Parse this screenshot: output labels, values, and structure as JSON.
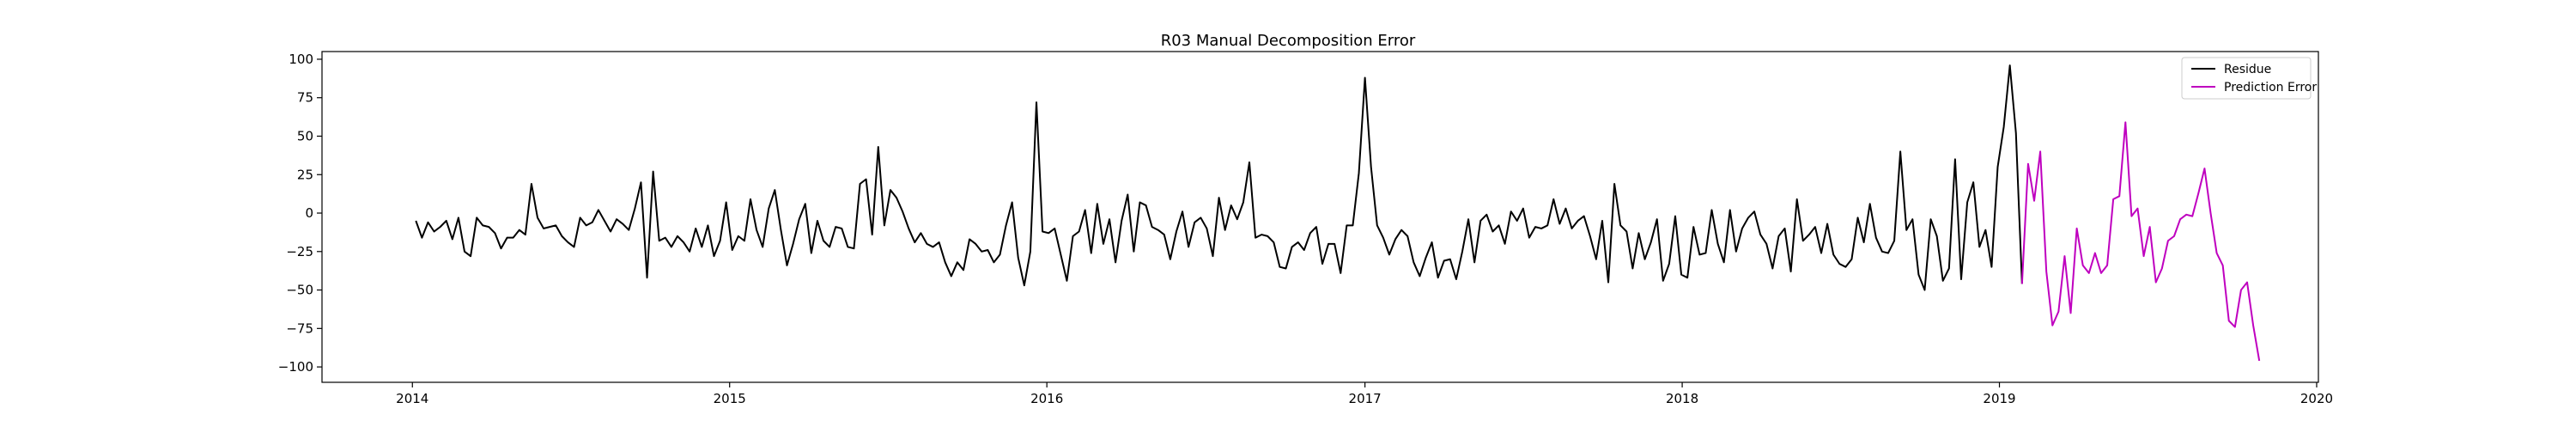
{
  "chart_data": {
    "type": "line",
    "title": "R03 Manual Decomposition Error",
    "xlabel": "",
    "ylabel": "",
    "xlim": [
      "2013-09-19",
      "2020-01-03"
    ],
    "ylim": [
      -110,
      105
    ],
    "x_ticks": [
      "2014",
      "2015",
      "2016",
      "2017",
      "2018",
      "2019",
      "2020"
    ],
    "y_ticks": [
      100,
      75,
      50,
      25,
      0,
      -25,
      -50,
      -75,
      -100
    ],
    "grid": false,
    "legend_position": "top-right",
    "series": [
      {
        "name": "Residue",
        "color": "#000000",
        "start_date": "2014-01-05",
        "step_days": 7,
        "values": [
          -5,
          -16,
          -6,
          -12,
          -9,
          -5,
          -17,
          -3,
          -25,
          -28,
          -3,
          -8,
          -9,
          -13,
          -23,
          -16,
          -16,
          -11,
          -14,
          19,
          -3,
          -10,
          -9,
          -8,
          -15,
          -19,
          -22,
          -3,
          -8,
          -6,
          2,
          -5,
          -12,
          -4,
          -7,
          -11,
          3,
          20,
          -42,
          27,
          -18,
          -16,
          -22,
          -15,
          -19,
          -25,
          -10,
          -22,
          -8,
          -28,
          -18,
          7,
          -24,
          -15,
          -18,
          9,
          -11,
          -22,
          3,
          15,
          -11,
          -34,
          -20,
          -4,
          6,
          -26,
          -5,
          -18,
          -22,
          -9,
          -10,
          -22,
          -23,
          19,
          22,
          -14,
          43,
          -8,
          15,
          10,
          1,
          -10,
          -19,
          -13,
          -20,
          -22,
          -19,
          -32,
          -41,
          -32,
          -37,
          -17,
          -20,
          -25,
          -24,
          -32,
          -27,
          -8,
          7,
          -29,
          -47,
          -25,
          72,
          -12,
          -13,
          -10,
          -27,
          -44,
          -15,
          -12,
          2,
          -26,
          6,
          -20,
          -4,
          -32,
          -5,
          12,
          -25,
          7,
          5,
          -9,
          -11,
          -14,
          -30,
          -12,
          1,
          -22,
          -6,
          -3,
          -10,
          -28,
          10,
          -11,
          5,
          -4,
          7,
          33,
          -16,
          -14,
          -15,
          -19,
          -35,
          -36,
          -22,
          -19,
          -24,
          -13,
          -9,
          -33,
          -20,
          -20,
          -39,
          -8,
          -8,
          26,
          88,
          30,
          -8,
          -16,
          -27,
          -17,
          -11,
          -15,
          -32,
          -41,
          -29,
          -19,
          -42,
          -31,
          -30,
          -43,
          -25,
          -4,
          -32,
          -5,
          -1,
          -12,
          -8,
          -20,
          1,
          -5,
          3,
          -16,
          -9,
          -10,
          -8,
          9,
          -7,
          3,
          -10,
          -5,
          -2,
          -15,
          -30,
          -5,
          -45,
          19,
          -8,
          -12,
          -36,
          -13,
          -30,
          -19,
          -4,
          -44,
          -33,
          -2,
          -40,
          -42,
          -9,
          -27,
          -26,
          2,
          -20,
          -32,
          2,
          -25,
          -10,
          -3,
          1,
          -14,
          -20,
          -36,
          -15,
          -10,
          -38,
          9,
          -18,
          -14,
          -9,
          -26,
          -7,
          -27,
          -33,
          -35,
          -30,
          -3,
          -19,
          6,
          -16,
          -25,
          -26,
          -18,
          40,
          -11,
          -4,
          -40,
          -50,
          -4,
          -15,
          -44,
          -36,
          35,
          -43,
          7,
          20,
          -22,
          -11,
          -35,
          30,
          56,
          96,
          52,
          -46
        ]
      },
      {
        "name": "Prediction Error",
        "color": "#bf00bf",
        "start_date": "2019-01-27",
        "step_days": 7,
        "values": [
          -46,
          32,
          8,
          40,
          -38,
          -73,
          -64,
          -28,
          -65,
          -10,
          -34,
          -39,
          -26,
          -39,
          -34,
          9,
          11,
          59,
          -2,
          3,
          -28,
          -9,
          -45,
          -36,
          -18,
          -15,
          -4,
          -1,
          -2,
          13,
          29,
          0,
          -26,
          -34,
          -70,
          -74,
          -50,
          -45,
          -73,
          -96
        ]
      }
    ]
  }
}
